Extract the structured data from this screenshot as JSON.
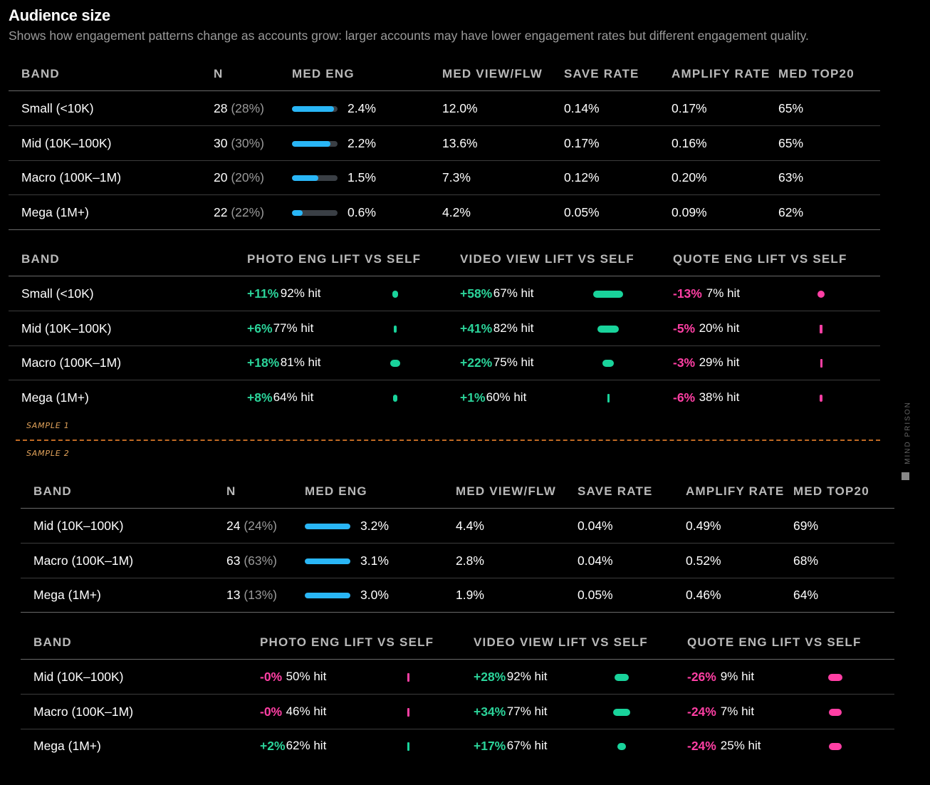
{
  "title": "Audience size",
  "subtitle": "Shows how engagement patterns change as accounts grow: larger accounts may have lower engagement rates but different engagement quality.",
  "watermark": "MIND PRISON",
  "colors": {
    "bar": "#29b6f6",
    "positive": "#2bd49a",
    "negative": "#ff3fa4",
    "sample_label": "#e0a25a"
  },
  "chart_data": [
    {
      "type": "table",
      "sample_label": "SAMPLE 1",
      "metrics": {
        "headers": [
          "BAND",
          "N",
          "MED ENG",
          "MED VIEW/FLW",
          "SAVE RATE",
          "AMPLIFY RATE",
          "MED TOP20"
        ],
        "rows": [
          {
            "band": "Small (<10K)",
            "n": "28",
            "n_pct": "(28%)",
            "med_eng": "2.4%",
            "med_eng_value": 2.4,
            "med_view": "12.0%",
            "save_rate": "0.14%",
            "amplify_rate": "0.17%",
            "med_top20": "65%"
          },
          {
            "band": "Mid (10K–100K)",
            "n": "30",
            "n_pct": "(30%)",
            "med_eng": "2.2%",
            "med_eng_value": 2.2,
            "med_view": "13.6%",
            "save_rate": "0.17%",
            "amplify_rate": "0.16%",
            "med_top20": "65%"
          },
          {
            "band": "Macro (100K–1M)",
            "n": "20",
            "n_pct": "(20%)",
            "med_eng": "1.5%",
            "med_eng_value": 1.5,
            "med_view": "7.3%",
            "save_rate": "0.12%",
            "amplify_rate": "0.20%",
            "med_top20": "63%"
          },
          {
            "band": "Mega (1M+)",
            "n": "22",
            "n_pct": "(22%)",
            "med_eng": "0.6%",
            "med_eng_value": 0.6,
            "med_view": "4.2%",
            "save_rate": "0.05%",
            "amplify_rate": "0.09%",
            "med_top20": "62%"
          }
        ]
      },
      "lifts": {
        "headers": [
          "BAND",
          "PHOTO ENG LIFT VS SELF",
          "VIDEO VIEW LIFT VS SELF",
          "QUOTE ENG LIFT VS SELF"
        ],
        "rows": [
          {
            "band": "Small (<10K)",
            "photo": "+11%",
            "photo_value": 11,
            "photo_hit": "92% hit",
            "video": "+58%",
            "video_value": 58,
            "video_hit": "67% hit",
            "quote": "-13%",
            "quote_value": -13,
            "quote_hit": "7% hit"
          },
          {
            "band": "Mid (10K–100K)",
            "photo": "+6%",
            "photo_value": 6,
            "photo_hit": "77% hit",
            "video": "+41%",
            "video_value": 41,
            "video_hit": "82% hit",
            "quote": "-5%",
            "quote_value": -5,
            "quote_hit": "20% hit"
          },
          {
            "band": "Macro (100K–1M)",
            "photo": "+18%",
            "photo_value": 18,
            "photo_hit": "81% hit",
            "video": "+22%",
            "video_value": 22,
            "video_hit": "75% hit",
            "quote": "-3%",
            "quote_value": -3,
            "quote_hit": "29% hit"
          },
          {
            "band": "Mega (1M+)",
            "photo": "+8%",
            "photo_value": 8,
            "photo_hit": "64% hit",
            "video": "+1%",
            "video_value": 1,
            "video_hit": "60% hit",
            "quote": "-6%",
            "quote_value": -6,
            "quote_hit": "38% hit"
          }
        ]
      }
    },
    {
      "type": "table",
      "sample_label": "SAMPLE 2",
      "metrics": {
        "headers": [
          "BAND",
          "N",
          "MED ENG",
          "MED VIEW/FLW",
          "SAVE RATE",
          "AMPLIFY RATE",
          "MED TOP20"
        ],
        "rows": [
          {
            "band": "Mid (10K–100K)",
            "n": "24",
            "n_pct": "(24%)",
            "med_eng": "3.2%",
            "med_eng_value": 3.2,
            "med_view": "4.4%",
            "save_rate": "0.04%",
            "amplify_rate": "0.49%",
            "med_top20": "69%"
          },
          {
            "band": "Macro (100K–1M)",
            "n": "63",
            "n_pct": "(63%)",
            "med_eng": "3.1%",
            "med_eng_value": 3.1,
            "med_view": "2.8%",
            "save_rate": "0.04%",
            "amplify_rate": "0.52%",
            "med_top20": "68%"
          },
          {
            "band": "Mega (1M+)",
            "n": "13",
            "n_pct": "(13%)",
            "med_eng": "3.0%",
            "med_eng_value": 3.0,
            "med_view": "1.9%",
            "save_rate": "0.05%",
            "amplify_rate": "0.46%",
            "med_top20": "64%"
          }
        ]
      },
      "lifts": {
        "headers": [
          "BAND",
          "PHOTO ENG LIFT VS SELF",
          "VIDEO VIEW LIFT VS SELF",
          "QUOTE ENG LIFT VS SELF"
        ],
        "rows": [
          {
            "band": "Mid (10K–100K)",
            "photo": "-0%",
            "photo_value": -0.1,
            "photo_hit": "50% hit",
            "video": "+28%",
            "video_value": 28,
            "video_hit": "92% hit",
            "quote": "-26%",
            "quote_value": -26,
            "quote_hit": "9% hit"
          },
          {
            "band": "Macro (100K–1M)",
            "photo": "-0%",
            "photo_value": -0.1,
            "photo_hit": "46% hit",
            "video": "+34%",
            "video_value": 34,
            "video_hit": "77% hit",
            "quote": "-24%",
            "quote_value": -24,
            "quote_hit": "7% hit"
          },
          {
            "band": "Mega (1M+)",
            "photo": "+2%",
            "photo_value": 2,
            "photo_hit": "62% hit",
            "video": "+17%",
            "video_value": 17,
            "video_hit": "67% hit",
            "quote": "-24%",
            "quote_value": -24,
            "quote_hit": "25% hit"
          }
        ]
      }
    }
  ]
}
